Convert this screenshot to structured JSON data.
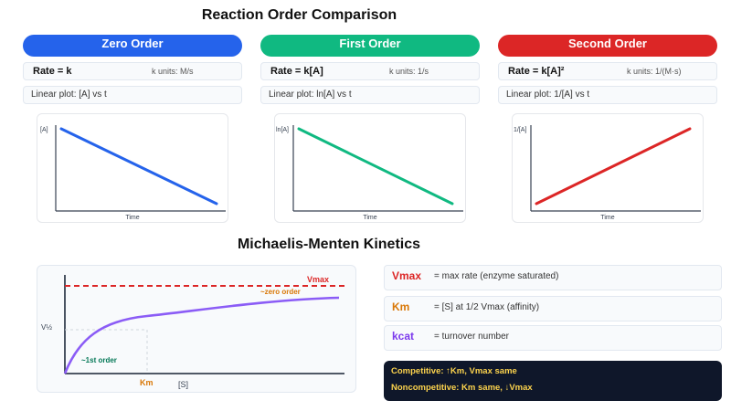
{
  "titles": {
    "reaction_orders": "Reaction Order Comparison",
    "michaelis": "Michaelis-Menten Kinetics"
  },
  "colors": {
    "zero": "#2563eb",
    "first": "#10b981",
    "second": "#dc2626",
    "vmax": "#dc2626",
    "km": "#d97706",
    "kcat": "#7c3aed",
    "curve": "#8b5cf6"
  },
  "orders": [
    {
      "name": "Zero Order",
      "rate": "Rate = k",
      "k_units": "k units: M/s",
      "plot": "Linear plot: [A] vs t",
      "ylabel": "[A]",
      "xlabel": "Time",
      "trend": "decreasing"
    },
    {
      "name": "First Order",
      "rate": "Rate = k[A]",
      "k_units": "k units: 1/s",
      "plot": "Linear plot: ln[A] vs t",
      "ylabel": "ln[A]",
      "xlabel": "Time",
      "trend": "decreasing"
    },
    {
      "name": "Second Order",
      "rate": "Rate = k[A]²",
      "k_units": "k units: 1/(M·s)",
      "plot": "Linear plot: 1/[A] vs t",
      "ylabel": "1/[A]",
      "xlabel": "Time",
      "trend": "increasing"
    }
  ],
  "mm_plot": {
    "vmax_label": "Vmax",
    "zero_label": "~zero order",
    "first_label": "~1st order",
    "half_label": "V½",
    "km_label": "Km",
    "xlabel": "[S]"
  },
  "parameters": [
    {
      "symbol": "Vmax",
      "desc": "= max rate (enzyme saturated)"
    },
    {
      "symbol": "Km",
      "desc": "= [S] at 1/2 Vmax (affinity)"
    },
    {
      "symbol": "kcat",
      "desc": "= turnover number"
    }
  ],
  "inhibition": {
    "competitive": "Competitive: ↑Km, Vmax same",
    "noncompetitive": "Noncompetitive: Km same, ↓Vmax"
  }
}
